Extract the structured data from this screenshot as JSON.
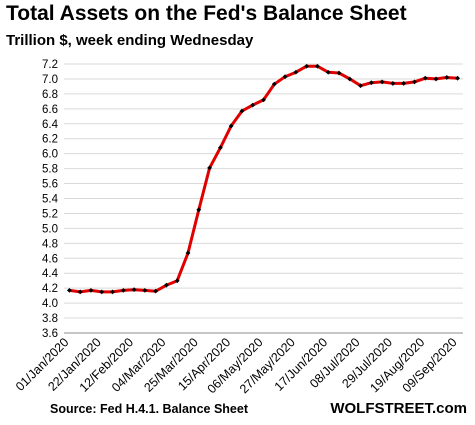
{
  "header": {
    "title": "Total Assets on the Fed's Balance Sheet",
    "subtitle": "Trillion $, week ending Wednesday"
  },
  "footer": {
    "source": "Source: Fed H.4.1. Balance Sheet",
    "brand": "WOLFSTREET.com"
  },
  "colors": {
    "line": "#e00000",
    "marker": "#000000",
    "grid": "#d9d9d9"
  },
  "chart_data": {
    "type": "line",
    "title": "Total Assets on the Fed's Balance Sheet",
    "subtitle": "Trillion $, week ending Wednesday",
    "xlabel": "",
    "ylabel": "",
    "ylim": [
      3.6,
      7.2
    ],
    "y_ticks": [
      "3.6",
      "3.8",
      "4.0",
      "4.2",
      "4.4",
      "4.6",
      "4.8",
      "5.0",
      "5.2",
      "5.4",
      "5.6",
      "5.8",
      "6.0",
      "6.2",
      "6.4",
      "6.6",
      "6.8",
      "7.0",
      "7.2"
    ],
    "grid": "horizontal",
    "x_tick_labels": [
      "01/Jan/2020",
      "22/Jan/2020",
      "12/Feb/2020",
      "04/Mar/2020",
      "25/Mar/2020",
      "15/Apr/2020",
      "06/May/2020",
      "27/May/2020",
      "17/Jun/2020",
      "08/Jul/2020",
      "29/Jul/2020",
      "19/Aug/2020",
      "09/Sep/2020"
    ],
    "x": [
      "01/Jan/2020",
      "08/Jan/2020",
      "15/Jan/2020",
      "22/Jan/2020",
      "29/Jan/2020",
      "05/Feb/2020",
      "12/Feb/2020",
      "19/Feb/2020",
      "26/Feb/2020",
      "04/Mar/2020",
      "11/Mar/2020",
      "18/Mar/2020",
      "25/Mar/2020",
      "01/Apr/2020",
      "08/Apr/2020",
      "15/Apr/2020",
      "22/Apr/2020",
      "29/Apr/2020",
      "06/May/2020",
      "13/May/2020",
      "20/May/2020",
      "27/May/2020",
      "03/Jun/2020",
      "10/Jun/2020",
      "17/Jun/2020",
      "24/Jun/2020",
      "01/Jul/2020",
      "08/Jul/2020",
      "15/Jul/2020",
      "22/Jul/2020",
      "29/Jul/2020",
      "05/Aug/2020",
      "12/Aug/2020",
      "19/Aug/2020",
      "26/Aug/2020",
      "02/Sep/2020",
      "09/Sep/2020"
    ],
    "series": [
      {
        "values": [
          4.17,
          4.15,
          4.17,
          4.15,
          4.15,
          4.17,
          4.18,
          4.17,
          4.16,
          4.24,
          4.3,
          4.67,
          5.25,
          5.81,
          6.08,
          6.37,
          6.57,
          6.65,
          6.72,
          6.93,
          7.03,
          7.09,
          7.17,
          7.17,
          7.09,
          7.08,
          7.0,
          6.91,
          6.95,
          6.96,
          6.94,
          6.94,
          6.96,
          7.01,
          7.0,
          7.02,
          7.01
        ]
      }
    ]
  }
}
